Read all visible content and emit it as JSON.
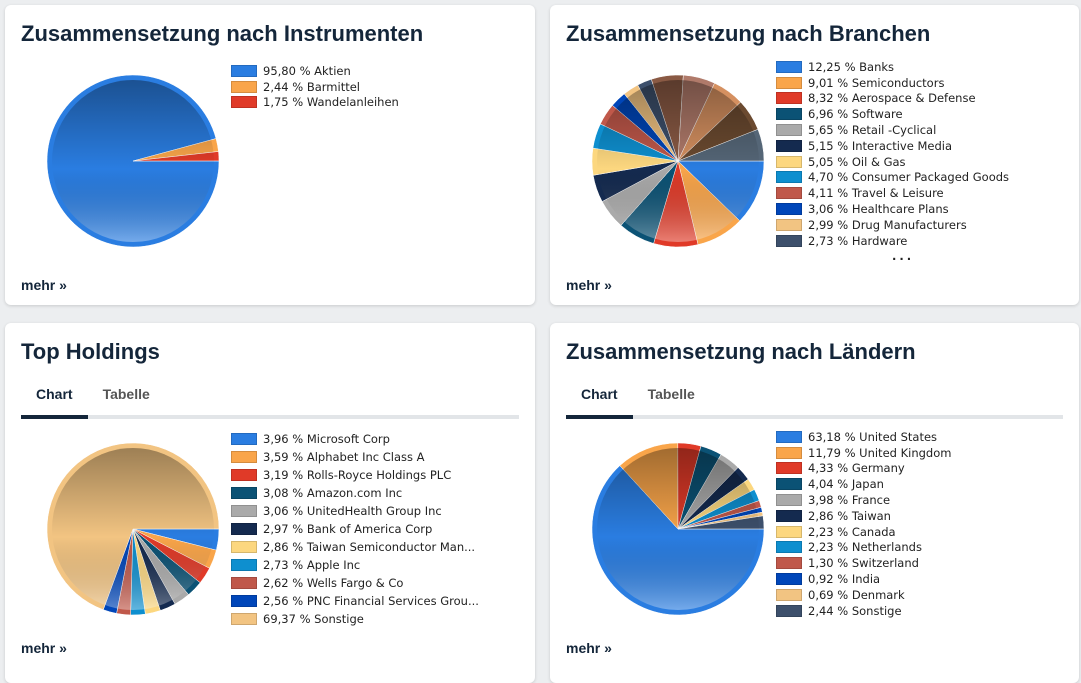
{
  "colors": [
    "#2a7de1",
    "#f9a54a",
    "#e03a28",
    "#0b5275",
    "#aaaaaa",
    "#142a4f",
    "#fcd77f",
    "#0e8fcf",
    "#c0584a",
    "#0046b9",
    "#f2c482",
    "#3d506c"
  ],
  "more_label": "mehr »",
  "chart_data": [
    {
      "type": "pie",
      "title": "Zusammensetzung nach Instrumenten",
      "labels": [
        "95,80 % Aktien",
        "2,44 % Barmittel",
        "1,75 % Wandelanleihen"
      ],
      "values": [
        95.8,
        2.44,
        1.75
      ]
    },
    {
      "type": "pie",
      "title": "Zusammensetzung nach Branchen",
      "labels": [
        "12,25 % Banks",
        "9,01 % Semiconductors",
        "8,32 % Aerospace & Defense",
        "6,96 % Software",
        "5,65 % Retail -Cyclical",
        "5,15 % Interactive Media",
        "5,05 % Oil & Gas",
        "4,70 % Consumer Packaged Goods",
        "4,11 % Travel & Leisure",
        "3,06 % Healthcare Plans",
        "2,99 % Drug Manufacturers",
        "2,73 % Hardware"
      ],
      "values": [
        12.25,
        9.01,
        8.32,
        6.96,
        5.65,
        5.15,
        5.05,
        4.7,
        4.11,
        3.06,
        2.99,
        2.73
      ],
      "more_indicator": "..."
    },
    {
      "type": "pie",
      "title": "Top Holdings",
      "tabs": [
        "Chart",
        "Tabelle"
      ],
      "active_tab": "Chart",
      "labels": [
        "3,96 % Microsoft Corp",
        "3,59 % Alphabet Inc Class A",
        "3,19 % Rolls-Royce Holdings PLC",
        "3,08 % Amazon.com Inc",
        "3,06 % UnitedHealth Group Inc",
        "2,97 % Bank of America Corp",
        "2,86 % Taiwan Semiconductor Man...",
        "2,73 % Apple Inc",
        "2,62 % Wells Fargo & Co",
        "2,56 % PNC Financial Services Grou...",
        "69,37 % Sonstige"
      ],
      "values": [
        3.96,
        3.59,
        3.19,
        3.08,
        3.06,
        2.97,
        2.86,
        2.73,
        2.62,
        2.56,
        69.37
      ],
      "colors": [
        "#2a7de1",
        "#f9a54a",
        "#e03a28",
        "#0b5275",
        "#aaaaaa",
        "#142a4f",
        "#fcd77f",
        "#0e8fcf",
        "#c0584a",
        "#0046b9",
        "#f2c482"
      ]
    },
    {
      "type": "pie",
      "title": "Zusammensetzung nach Ländern",
      "tabs": [
        "Chart",
        "Tabelle"
      ],
      "active_tab": "Chart",
      "labels": [
        "63,18 % United States",
        "11,79 % United Kingdom",
        "4,33 % Germany",
        "4,04 % Japan",
        "3,98 % France",
        "2,86 % Taiwan",
        "2,23 % Canada",
        "2,23 % Netherlands",
        "1,30 % Switzerland",
        "0,92 % India",
        "0,69 % Denmark",
        "2,44 % Sonstige"
      ],
      "values": [
        63.18,
        11.79,
        4.33,
        4.04,
        3.98,
        2.86,
        2.23,
        2.23,
        1.3,
        0.92,
        0.69,
        2.44
      ]
    }
  ]
}
